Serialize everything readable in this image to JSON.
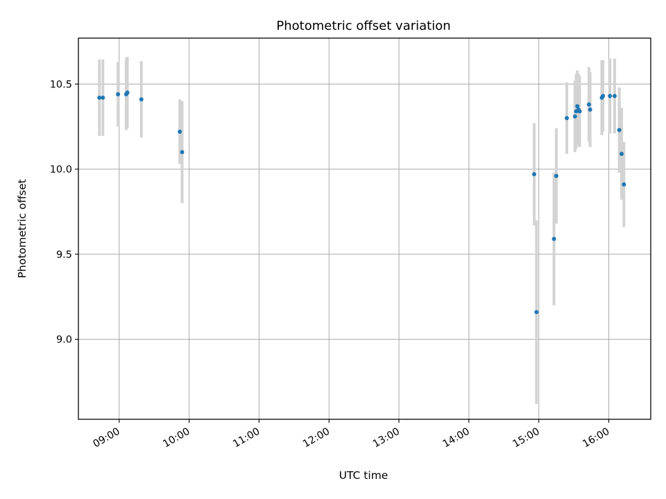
{
  "chart_data": {
    "type": "scatter",
    "title": "Photometric offset variation",
    "xlabel": "UTC time",
    "ylabel": "Photometric offset",
    "x_is_time": true,
    "xlim": [
      "08:25",
      "16:36"
    ],
    "ylim": [
      8.53,
      10.77
    ],
    "xticks": [
      "09:00",
      "10:00",
      "11:00",
      "12:00",
      "13:00",
      "14:00",
      "15:00",
      "16:00"
    ],
    "yticks": [
      9.0,
      9.5,
      10.0,
      10.5
    ],
    "grid": true,
    "colors": {
      "point": "#1f77b4",
      "errorbar": "#d3d3d3",
      "grid": "#b0b0b0",
      "axes": "#000000"
    },
    "points": [
      {
        "x": "08:46",
        "y": 10.42,
        "err": 0.225
      },
      {
        "x": "08:43",
        "y": 10.42,
        "err": 0.225
      },
      {
        "x": "08:59",
        "y": 10.44,
        "err": 0.19
      },
      {
        "x": "09:06",
        "y": 10.44,
        "err": 0.21
      },
      {
        "x": "09:07",
        "y": 10.45,
        "err": 0.21
      },
      {
        "x": "09:19",
        "y": 10.41,
        "err": 0.225
      },
      {
        "x": "09:52",
        "y": 10.22,
        "err": 0.19
      },
      {
        "x": "09:54",
        "y": 10.1,
        "err": 0.3
      },
      {
        "x": "14:56",
        "y": 9.97,
        "err": 0.3
      },
      {
        "x": "14:58",
        "y": 9.16,
        "err": 0.54
      },
      {
        "x": "15:13",
        "y": 9.59,
        "err": 0.39
      },
      {
        "x": "15:15",
        "y": 9.96,
        "err": 0.28
      },
      {
        "x": "15:24",
        "y": 10.3,
        "err": 0.21
      },
      {
        "x": "15:31",
        "y": 10.31,
        "err": 0.21
      },
      {
        "x": "15:32",
        "y": 10.34,
        "err": 0.22
      },
      {
        "x": "15:33",
        "y": 10.37,
        "err": 0.21
      },
      {
        "x": "15:34",
        "y": 10.35,
        "err": 0.21
      },
      {
        "x": "15:35",
        "y": 10.34,
        "err": 0.21
      },
      {
        "x": "15:43",
        "y": 10.38,
        "err": 0.22
      },
      {
        "x": "15:44",
        "y": 10.35,
        "err": 0.22
      },
      {
        "x": "15:54",
        "y": 10.42,
        "err": 0.22
      },
      {
        "x": "15:55",
        "y": 10.43,
        "err": 0.21
      },
      {
        "x": "16:01",
        "y": 10.43,
        "err": 0.22
      },
      {
        "x": "16:05",
        "y": 10.43,
        "err": 0.22
      },
      {
        "x": "16:09",
        "y": 10.23,
        "err": 0.25
      },
      {
        "x": "16:11",
        "y": 10.09,
        "err": 0.27
      },
      {
        "x": "16:13",
        "y": 9.91,
        "err": 0.25
      }
    ]
  }
}
